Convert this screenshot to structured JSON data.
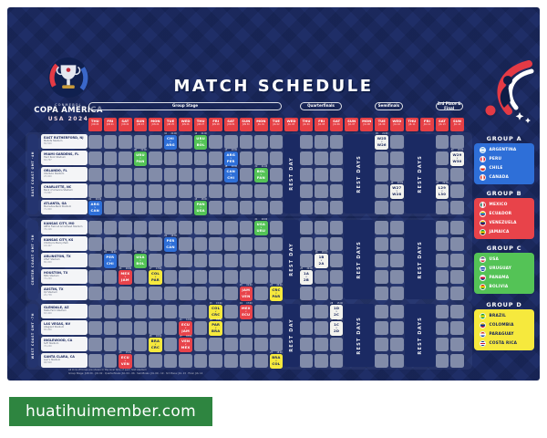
{
  "title": "MATCH SCHEDULE",
  "logo": {
    "federation": "CONMEBOL",
    "name": "COPA AMERICA",
    "edition": "USA 2024"
  },
  "watermark": "huatihuimember.com",
  "colors": {
    "background": "#1f2e67",
    "date_cell": "#e64045",
    "watermark_green": "#2e8540",
    "empty_cell": "#828ca9"
  },
  "calendar": {
    "days": [
      {
        "d": "THU",
        "m": "JUN 20"
      },
      {
        "d": "FRI",
        "m": "JUN 21"
      },
      {
        "d": "SAT",
        "m": "JUN 22"
      },
      {
        "d": "SUN",
        "m": "JUN 23"
      },
      {
        "d": "MON",
        "m": "JUN 24"
      },
      {
        "d": "TUE",
        "m": "JUN 25"
      },
      {
        "d": "WED",
        "m": "JUN 26"
      },
      {
        "d": "THU",
        "m": "JUN 27"
      },
      {
        "d": "FRI",
        "m": "JUN 28"
      },
      {
        "d": "SAT",
        "m": "JUN 29"
      },
      {
        "d": "SUN",
        "m": "JUN 30"
      },
      {
        "d": "MON",
        "m": "JUL 01"
      },
      {
        "d": "TUE",
        "m": "JUL 02"
      },
      {
        "d": "WED",
        "m": "JUL 03"
      },
      {
        "d": "THU",
        "m": "JUL 04"
      },
      {
        "d": "FRI",
        "m": "JUL 05"
      },
      {
        "d": "SAT",
        "m": "JUL 06"
      },
      {
        "d": "SUN",
        "m": "JUL 07"
      },
      {
        "d": "MON",
        "m": "JUL 08"
      },
      {
        "d": "TUE",
        "m": "JUL 09"
      },
      {
        "d": "WED",
        "m": "JUL 10"
      },
      {
        "d": "THU",
        "m": "JUL 11"
      },
      {
        "d": "FRI",
        "m": "JUL 12"
      },
      {
        "d": "SAT",
        "m": "JUL 13"
      },
      {
        "d": "SUN",
        "m": "JUL 14"
      }
    ],
    "stages": [
      {
        "label": "Group Stage",
        "start": 1,
        "end": 13
      },
      {
        "label": "Quarterfinals",
        "start": 15,
        "end": 17
      },
      {
        "label": "Semifinals",
        "start": 20,
        "end": 21
      },
      {
        "label": "3rd Place & Final",
        "start": 24,
        "end": 25
      }
    ],
    "rest": [
      {
        "label": "REST DAY",
        "start": 14,
        "end": 14
      },
      {
        "label": "REST DAYS",
        "start": 18,
        "end": 19
      },
      {
        "label": "REST DAYS",
        "start": 22,
        "end": 23
      }
    ]
  },
  "sections": [
    {
      "timezone": "EAST COAST GMT -4H",
      "stadiums": [
        {
          "city": "EAST RUTHERFORD, NJ",
          "stadium": "MetLife Stadium",
          "capacity": "82,500"
        },
        {
          "city": "MIAMI GARDENS, FL",
          "stadium": "Hard Rock Stadium",
          "capacity": "64,767"
        },
        {
          "city": "ORLANDO, FL",
          "stadium": "Inter&Co Stadium",
          "capacity": "25,000"
        },
        {
          "city": "CHARLOTTE, NC",
          "stadium": "Bank of America Stadium",
          "capacity": "74,867"
        },
        {
          "city": "ATLANTA, GA",
          "stadium": "Mercedes-Benz Stadium",
          "capacity": "71,000"
        }
      ]
    },
    {
      "timezone": "CENTER COAST GMT -5H",
      "stadiums": [
        {
          "city": "KANSAS CITY, MO",
          "stadium": "GEHA Field at Arrowhead Stadium",
          "capacity": "76,416"
        },
        {
          "city": "KANSAS CITY, KS",
          "stadium": "Children's Mercy Park",
          "capacity": "18,467"
        },
        {
          "city": "ARLINGTON, TX",
          "stadium": "AT&T Stadium",
          "capacity": "80,000"
        },
        {
          "city": "HOUSTON, TX",
          "stadium": "NRG Stadium",
          "capacity": "72,220"
        },
        {
          "city": "AUSTIN, TX",
          "stadium": "Q2 Stadium",
          "capacity": "20,738"
        }
      ]
    },
    {
      "timezone": "WEST COAST GMT -7H",
      "stadiums": [
        {
          "city": "GLENDALE, AZ",
          "stadium": "State Farm Stadium",
          "capacity": "63,400"
        },
        {
          "city": "LAS VEGAS, NV",
          "stadium": "Allegiant Stadium",
          "capacity": "65,000"
        },
        {
          "city": "INGLEWOOD, CA",
          "stadium": "SoFi Stadium",
          "capacity": "70,240"
        },
        {
          "city": "SANTA CLARA, CA",
          "stadium": "Levi's Stadium",
          "capacity": "68,500"
        }
      ]
    }
  ],
  "group_colors": {
    "A": {
      "bg": "#2e6fd8",
      "fg": "#ffffff"
    },
    "B": {
      "bg": "#e8434a",
      "fg": "#ffffff"
    },
    "C": {
      "bg": "#54c356",
      "fg": "#ffffff"
    },
    "D": {
      "bg": "#f6e93d",
      "fg": "#14225a"
    },
    "KO": {
      "bg": "#f3f3ee",
      "fg": "#14225a"
    }
  },
  "matches": [
    {
      "no": "01",
      "time": "20:00",
      "home": "ARG",
      "away": "CAN",
      "group": "A",
      "stadium": 5,
      "col": 1
    },
    {
      "no": "02",
      "time": "19:00",
      "home": "PER",
      "away": "CHI",
      "group": "A",
      "stadium": 8,
      "col": 2
    },
    {
      "no": "03",
      "time": "15:00",
      "home": "ECU",
      "away": "VEN",
      "group": "B",
      "stadium": 14,
      "col": 3
    },
    {
      "no": "04",
      "time": "20:00",
      "home": "MEX",
      "away": "JAM",
      "group": "B",
      "stadium": 9,
      "col": 3
    },
    {
      "no": "05",
      "time": "17:00",
      "home": "USA",
      "away": "BOL",
      "group": "C",
      "stadium": 8,
      "col": 4
    },
    {
      "no": "06",
      "time": "21:00",
      "home": "URU",
      "away": "PAN",
      "group": "C",
      "stadium": 2,
      "col": 4
    },
    {
      "no": "07",
      "time": "17:00",
      "home": "COL",
      "away": "PAR",
      "group": "D",
      "stadium": 9,
      "col": 5
    },
    {
      "no": "08",
      "time": "18:00",
      "home": "BRA",
      "away": "CRC",
      "group": "D",
      "stadium": 13,
      "col": 5
    },
    {
      "no": "09",
      "time": "16:00",
      "home": "PER",
      "away": "CAN",
      "group": "A",
      "stadium": 7,
      "col": 6
    },
    {
      "no": "10",
      "time": "21:00",
      "home": "CHI",
      "away": "ARG",
      "group": "A",
      "stadium": 1,
      "col": 6
    },
    {
      "no": "11",
      "time": "12:00",
      "home": "ECU",
      "away": "JAM",
      "group": "B",
      "stadium": 12,
      "col": 7
    },
    {
      "no": "12",
      "time": "18:00",
      "home": "VEN",
      "away": "MEX",
      "group": "B",
      "stadium": 13,
      "col": 7
    },
    {
      "no": "13",
      "time": "18:00",
      "home": "PAN",
      "away": "USA",
      "group": "C",
      "stadium": 5,
      "col": 8
    },
    {
      "no": "14",
      "time": "21:00",
      "home": "URU",
      "away": "BOL",
      "group": "C",
      "stadium": 1,
      "col": 8
    },
    {
      "no": "15",
      "time": "15:00",
      "home": "COL",
      "away": "CRC",
      "group": "D",
      "stadium": 11,
      "col": 9
    },
    {
      "no": "16",
      "time": "18:00",
      "home": "PAR",
      "away": "BRA",
      "group": "D",
      "stadium": 12,
      "col": 9
    },
    {
      "no": "17",
      "time": "20:00",
      "home": "ARG",
      "away": "PER",
      "group": "A",
      "stadium": 2,
      "col": 10
    },
    {
      "no": "18",
      "time": "20:00",
      "home": "CAN",
      "away": "CHI",
      "group": "A",
      "stadium": 3,
      "col": 10
    },
    {
      "no": "19",
      "time": "17:00",
      "home": "MEX",
      "away": "ECU",
      "group": "B",
      "stadium": 11,
      "col": 11
    },
    {
      "no": "20",
      "time": "19:00",
      "home": "JAM",
      "away": "VEN",
      "group": "B",
      "stadium": 10,
      "col": 11
    },
    {
      "no": "21",
      "time": "20:00",
      "home": "USA",
      "away": "URU",
      "group": "C",
      "stadium": 6,
      "col": 12
    },
    {
      "no": "22",
      "time": "21:00",
      "home": "BOL",
      "away": "PAN",
      "group": "C",
      "stadium": 3,
      "col": 12
    },
    {
      "no": "23",
      "time": "18:00",
      "home": "BRA",
      "away": "COL",
      "group": "D",
      "stadium": 14,
      "col": 13
    },
    {
      "no": "24",
      "time": "20:00",
      "home": "CRC",
      "away": "PAR",
      "group": "D",
      "stadium": 10,
      "col": 13
    },
    {
      "no": "25",
      "time": "20:00",
      "home": "1A",
      "away": "2B",
      "group": "KO",
      "stadium": 9,
      "col": 15
    },
    {
      "no": "26",
      "time": "20:00",
      "home": "1B",
      "away": "2A",
      "group": "KO",
      "stadium": 8,
      "col": 16
    },
    {
      "no": "27",
      "time": "18:00",
      "home": "1C",
      "away": "2D",
      "group": "KO",
      "stadium": 12,
      "col": 17
    },
    {
      "no": "28",
      "time": "15:00",
      "home": "1D",
      "away": "2C",
      "group": "KO",
      "stadium": 11,
      "col": 17
    },
    {
      "no": "29",
      "time": "21:00",
      "home": "W25",
      "away": "W26",
      "group": "KO",
      "stadium": 1,
      "col": 20
    },
    {
      "no": "30",
      "time": "20:00",
      "home": "W27",
      "away": "W28",
      "group": "KO",
      "stadium": 4,
      "col": 21
    },
    {
      "no": "31",
      "time": "20:00",
      "home": "L29",
      "away": "L30",
      "group": "KO",
      "stadium": 4,
      "col": 24
    },
    {
      "no": "32",
      "time": "20:00",
      "home": "W29",
      "away": "W30",
      "group": "KO",
      "stadium": 2,
      "col": 25
    }
  ],
  "groups": [
    {
      "name": "GROUP A",
      "color": "#2e6fd8",
      "text": "#ffffff",
      "teams": [
        {
          "team": "ARGENTINA",
          "flag": [
            "#74ACDF",
            "#ffffff",
            "#74ACDF"
          ],
          "dir": "h"
        },
        {
          "team": "PERU",
          "flag": [
            "#D91023",
            "#ffffff",
            "#D91023"
          ],
          "dir": "v"
        },
        {
          "team": "CHILE",
          "flag": [
            "#ffffff",
            "#D52B1E"
          ],
          "dir": "h"
        },
        {
          "team": "CANADA",
          "flag": [
            "#D52B1E",
            "#ffffff",
            "#D52B1E"
          ],
          "dir": "v"
        }
      ]
    },
    {
      "name": "GROUP B",
      "color": "#e8434a",
      "text": "#ffffff",
      "teams": [
        {
          "team": "MEXICO",
          "flag": [
            "#006847",
            "#ffffff",
            "#CE1126"
          ],
          "dir": "v"
        },
        {
          "team": "ECUADOR",
          "flag": [
            "#FFDD00",
            "#0072CE",
            "#EF3340"
          ],
          "dir": "h"
        },
        {
          "team": "VENEZUELA",
          "flag": [
            "#FFCC00",
            "#00247D",
            "#CF142B"
          ],
          "dir": "h"
        },
        {
          "team": "JAMAICA",
          "flag": [
            "#009B3A",
            "#FED100",
            "#000000"
          ],
          "dir": "h"
        }
      ]
    },
    {
      "name": "GROUP C",
      "color": "#54c356",
      "text": "#ffffff",
      "teams": [
        {
          "team": "USA",
          "flag": [
            "#3C3B6E",
            "#ffffff",
            "#CE1126"
          ],
          "dir": "h"
        },
        {
          "team": "URUGUAY",
          "flag": [
            "#ffffff",
            "#0038A8",
            "#ffffff",
            "#0038A8"
          ],
          "dir": "h"
        },
        {
          "team": "PANAMA",
          "flag": [
            "#ffffff",
            "#D21034",
            "#005293"
          ],
          "dir": "h"
        },
        {
          "team": "BOLIVIA",
          "flag": [
            "#D52B1E",
            "#F9E300",
            "#007934"
          ],
          "dir": "h"
        }
      ]
    },
    {
      "name": "GROUP D",
      "color": "#f6e93d",
      "text": "#14225a",
      "teams": [
        {
          "team": "BRAZIL",
          "flag": [
            "#009C3B",
            "#FFDF00",
            "#009C3B"
          ],
          "dir": "h"
        },
        {
          "team": "COLOMBIA",
          "flag": [
            "#FCD116",
            "#003893",
            "#CE1126"
          ],
          "dir": "h"
        },
        {
          "team": "PARAGUAY",
          "flag": [
            "#D52B1E",
            "#ffffff",
            "#0038A8"
          ],
          "dir": "h"
        },
        {
          "team": "COSTA RICA",
          "flag": [
            "#002B7F",
            "#ffffff",
            "#CE1126",
            "#ffffff",
            "#002B7F"
          ],
          "dir": "h"
        }
      ]
    }
  ],
  "footnotes": [
    "All kick-off times are shown in the local time of each host stadium",
    "Group Stage: JUN 20 - JUL 02  ·  Quarterfinals: JUL 04 - 06  ·  Semifinals: JUL 09 - 10  ·  3rd Place: JUL 13  ·  Final: JUL 14"
  ]
}
